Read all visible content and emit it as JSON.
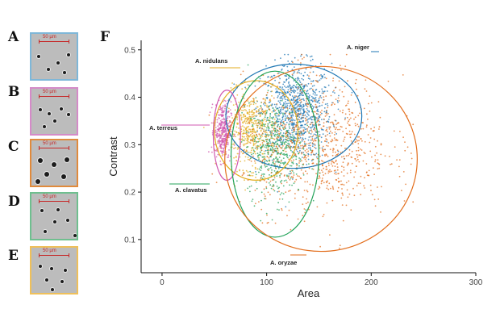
{
  "panels": {
    "letters": [
      "A",
      "B",
      "C",
      "D",
      "E",
      "F"
    ],
    "scale_label": "50 µm",
    "border_colors": [
      "#7fb7d8",
      "#d48bc8",
      "#e08a3c",
      "#6fbf8f",
      "#efc05a"
    ]
  },
  "chart_data": {
    "type": "scatter",
    "xlabel": "Area",
    "ylabel": "Contrast",
    "xlim": [
      -20,
      300
    ],
    "ylim": [
      0.03,
      0.52
    ],
    "xticks": [
      0,
      100,
      200,
      300
    ],
    "yticks": [
      0.1,
      0.2,
      0.3,
      0.4,
      0.5
    ],
    "grid": false,
    "series": [
      {
        "name": "A. niger",
        "color": "#1f77b4",
        "center": [
          128,
          0.37
        ],
        "spread": [
          17,
          0.05
        ],
        "ellipse": {
          "center": [
            126,
            0.36
          ],
          "radii": [
            65,
            0.11
          ]
        }
      },
      {
        "name": "A. nidulans",
        "color": "#e3ad1f",
        "center": [
          85,
          0.33
        ],
        "spread": [
          12,
          0.04
        ],
        "ellipse": {
          "center": [
            90,
            0.33
          ],
          "radii": [
            40,
            0.105
          ]
        }
      },
      {
        "name": "A. terreus",
        "color": "#d15ab0",
        "center": [
          58,
          0.33
        ],
        "spread": [
          4,
          0.03
        ],
        "ellipse": {
          "center": [
            62,
            0.32
          ],
          "radii": [
            13,
            0.095
          ]
        }
      },
      {
        "name": "A. clavatus",
        "color": "#23a35a",
        "center": [
          108,
          0.29
        ],
        "spread": [
          13,
          0.05
        ],
        "ellipse": {
          "center": [
            108,
            0.28
          ],
          "radii": [
            42,
            0.175
          ]
        }
      },
      {
        "name": "A. oryzae",
        "color": "#e36f1e",
        "center": [
          148,
          0.3
        ],
        "spread": [
          35,
          0.07
        ],
        "ellipse": {
          "center": [
            152,
            0.27
          ],
          "radii": [
            92,
            0.195
          ]
        }
      }
    ]
  }
}
